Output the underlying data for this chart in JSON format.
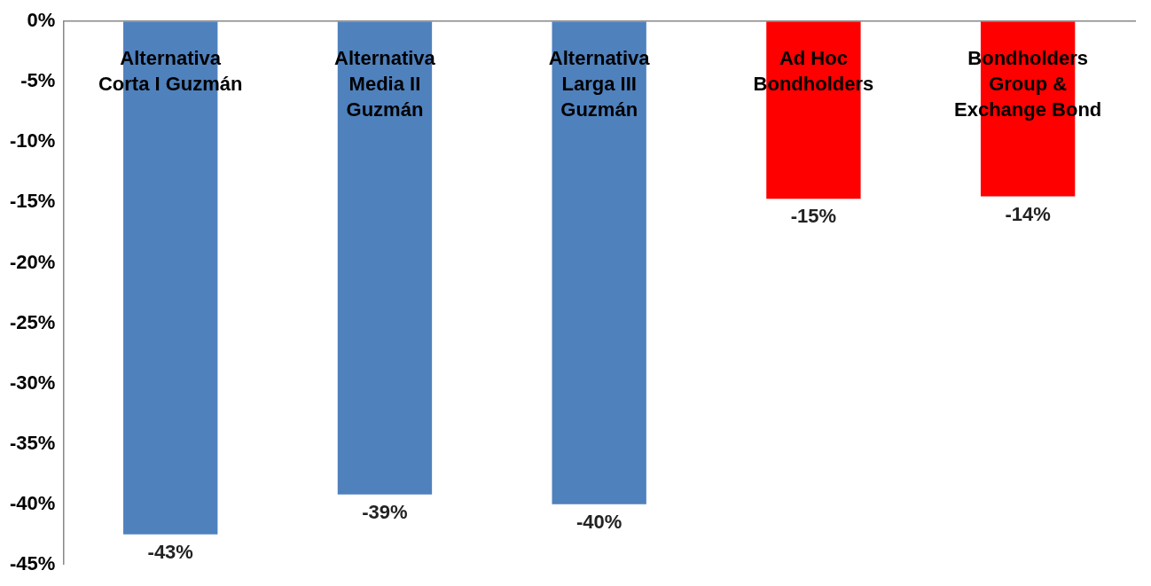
{
  "chart_data": {
    "type": "bar",
    "categories": [
      "Alternativa Corta I Guzmán",
      "Alternativa Media II Guzmán",
      "Alternativa Larga III Guzmán",
      "Ad Hoc Bondholders",
      "Bondholders Group & Exchange Bond"
    ],
    "values": [
      -42.5,
      -39.2,
      -40,
      -14.7,
      -14.5
    ],
    "colors": [
      "#4f81bd",
      "#4f81bd",
      "#4f81bd",
      "#ff0000",
      "#ff0000"
    ],
    "value_labels": [
      "-43%",
      "-39%",
      "-40%",
      "-15%",
      "-14%"
    ],
    "ylim": [
      -45,
      0
    ],
    "yticks": [
      {
        "value": 0,
        "label": "0%"
      },
      {
        "value": -5,
        "label": "-5%"
      },
      {
        "value": -10,
        "label": "-10%"
      },
      {
        "value": -15,
        "label": "-15%"
      },
      {
        "value": -20,
        "label": "-20%"
      },
      {
        "value": -25,
        "label": "-25%"
      },
      {
        "value": -30,
        "label": "-30%"
      },
      {
        "value": -35,
        "label": "-35%"
      },
      {
        "value": -40,
        "label": "-40%"
      },
      {
        "value": -45,
        "label": "-45%"
      }
    ],
    "grid": false,
    "legend": false
  }
}
